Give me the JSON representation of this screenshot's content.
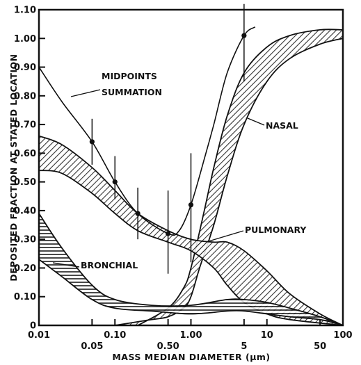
{
  "chart_data": {
    "type": "line",
    "xlabel": "MASS MEDIAN DIAMETER (μm)",
    "ylabel": "DEPOSITED FRACTION AT STATED LOCATION",
    "xscale": "log",
    "xlim": [
      0.01,
      100
    ],
    "ylim": [
      0,
      1.1
    ],
    "x_ticks": [
      0.01,
      0.05,
      0.1,
      0.5,
      1.0,
      5,
      10,
      50,
      100
    ],
    "x_tick_labels": [
      "0.01",
      "0.05",
      "0.10",
      "0.50",
      "1.00",
      "5",
      "10",
      "50",
      "100"
    ],
    "y_ticks": [
      0,
      0.1,
      0.2,
      0.3,
      0.4,
      0.5,
      0.6,
      0.7,
      0.8,
      0.9,
      1.0,
      1.1
    ],
    "y_tick_labels": [
      "0",
      "0.10",
      "0.20",
      "0.30",
      "0.40",
      "0.50",
      "0.60",
      "0.70",
      "0.80",
      "0.90",
      "1.00",
      "1.10"
    ],
    "annotations": [
      "MIDPOINTS",
      "SUMMATION",
      "NASAL",
      "PULMONARY",
      "BRONCHIAL"
    ],
    "bands": [
      {
        "label": "NASAL",
        "hatch": "diagonal",
        "upper": [
          [
            0.2,
            0.0
          ],
          [
            0.5,
            0.06
          ],
          [
            0.8,
            0.13
          ],
          [
            1.0,
            0.2
          ],
          [
            1.5,
            0.4
          ],
          [
            2,
            0.55
          ],
          [
            3,
            0.73
          ],
          [
            5,
            0.88
          ],
          [
            10,
            0.97
          ],
          [
            20,
            1.01
          ],
          [
            50,
            1.03
          ],
          [
            100,
            1.03
          ]
        ],
        "lower": [
          [
            0.1,
            0.0
          ],
          [
            0.3,
            0.02
          ],
          [
            0.5,
            0.03
          ],
          [
            0.8,
            0.06
          ],
          [
            1.0,
            0.1
          ],
          [
            1.3,
            0.2
          ],
          [
            2,
            0.35
          ],
          [
            3,
            0.52
          ],
          [
            5,
            0.7
          ],
          [
            10,
            0.85
          ],
          [
            20,
            0.93
          ],
          [
            50,
            0.98
          ],
          [
            100,
            1.0
          ]
        ]
      },
      {
        "label": "PULMONARY",
        "hatch": "diagonal",
        "upper": [
          [
            0.01,
            0.66
          ],
          [
            0.02,
            0.63
          ],
          [
            0.05,
            0.55
          ],
          [
            0.1,
            0.47
          ],
          [
            0.2,
            0.39
          ],
          [
            0.5,
            0.33
          ],
          [
            1.0,
            0.3
          ],
          [
            2,
            0.29
          ],
          [
            3,
            0.29
          ],
          [
            5,
            0.26
          ],
          [
            10,
            0.19
          ],
          [
            20,
            0.11
          ],
          [
            50,
            0.04
          ],
          [
            100,
            0.0
          ]
        ],
        "lower": [
          [
            0.01,
            0.54
          ],
          [
            0.02,
            0.53
          ],
          [
            0.05,
            0.46
          ],
          [
            0.1,
            0.39
          ],
          [
            0.2,
            0.33
          ],
          [
            0.5,
            0.29
          ],
          [
            1.0,
            0.26
          ],
          [
            2,
            0.2
          ],
          [
            3,
            0.14
          ],
          [
            5,
            0.08
          ],
          [
            10,
            0.04
          ],
          [
            20,
            0.02
          ],
          [
            100,
            0.0
          ]
        ]
      },
      {
        "label": "BRONCHIAL",
        "hatch": "horizontal",
        "upper": [
          [
            0.01,
            0.39
          ],
          [
            0.02,
            0.27
          ],
          [
            0.05,
            0.14
          ],
          [
            0.1,
            0.09
          ],
          [
            0.3,
            0.07
          ],
          [
            1.0,
            0.07
          ],
          [
            3,
            0.09
          ],
          [
            5,
            0.09
          ],
          [
            10,
            0.08
          ],
          [
            20,
            0.06
          ],
          [
            50,
            0.03
          ],
          [
            100,
            0.0
          ]
        ],
        "lower": [
          [
            0.01,
            0.23
          ],
          [
            0.02,
            0.17
          ],
          [
            0.05,
            0.09
          ],
          [
            0.1,
            0.06
          ],
          [
            0.3,
            0.05
          ],
          [
            1.0,
            0.04
          ],
          [
            3,
            0.05
          ],
          [
            5,
            0.05
          ],
          [
            10,
            0.04
          ],
          [
            20,
            0.03
          ],
          [
            50,
            0.02
          ],
          [
            100,
            0.0
          ]
        ]
      }
    ],
    "series": [
      {
        "name": "MIDPOINTS SUMMATION",
        "curve": [
          [
            0.01,
            0.9
          ],
          [
            0.02,
            0.78
          ],
          [
            0.05,
            0.64
          ],
          [
            0.1,
            0.5
          ],
          [
            0.2,
            0.39
          ],
          [
            0.5,
            0.32
          ],
          [
            0.7,
            0.33
          ],
          [
            1.0,
            0.42
          ],
          [
            1.5,
            0.58
          ],
          [
            2,
            0.7
          ],
          [
            3,
            0.88
          ],
          [
            5,
            1.01
          ],
          [
            7,
            1.04
          ]
        ],
        "points": [
          {
            "x": 0.05,
            "y": 0.64,
            "y_low": 0.56,
            "y_high": 0.72
          },
          {
            "x": 0.1,
            "y": 0.5,
            "y_low": 0.44,
            "y_high": 0.59
          },
          {
            "x": 0.2,
            "y": 0.39,
            "y_low": 0.3,
            "y_high": 0.48
          },
          {
            "x": 0.5,
            "y": 0.32,
            "y_low": 0.18,
            "y_high": 0.47
          },
          {
            "x": 1.0,
            "y": 0.42,
            "y_low": 0.22,
            "y_high": 0.6
          },
          {
            "x": 5,
            "y": 1.01,
            "y_low": 0.85,
            "y_high": 1.12
          }
        ]
      }
    ]
  }
}
